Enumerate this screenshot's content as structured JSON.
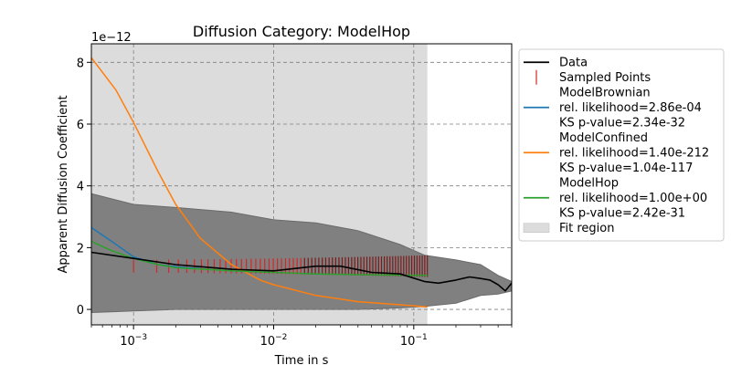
{
  "chart_data": {
    "type": "line",
    "title": "Diffusion Category: ModelHop",
    "xlabel": "Time in s",
    "ylabel": "Apparent Diffusion Coefficient",
    "xscale": "log",
    "xlim": [
      0.0005,
      0.5
    ],
    "ylim": [
      -5e-13,
      8.6e-12
    ],
    "y_offset_text": "1e−12",
    "grid": true,
    "legend_position": "right",
    "x_ticks": [
      {
        "value": 0.001,
        "base": "10",
        "exp": "−3"
      },
      {
        "value": 0.01,
        "base": "10",
        "exp": "−2"
      },
      {
        "value": 0.1,
        "base": "10",
        "exp": "−1"
      }
    ],
    "y_ticks": [
      {
        "value": 0,
        "label": "0"
      },
      {
        "value": 2e-12,
        "label": "2"
      },
      {
        "value": 4e-12,
        "label": "4"
      },
      {
        "value": 6e-12,
        "label": "6"
      },
      {
        "value": 8e-12,
        "label": "8"
      }
    ],
    "fit_region": {
      "x": [
        0.0005,
        0.125
      ],
      "label": "Fit region",
      "color": "#dcdcdc"
    },
    "uncertainty_band": {
      "color": "#808080",
      "x": [
        0.0005,
        0.001,
        0.002,
        0.005,
        0.01,
        0.02,
        0.04,
        0.08,
        0.12,
        0.2,
        0.3,
        0.4,
        0.5
      ],
      "upper": [
        3.75e-12,
        3.4e-12,
        3.3e-12,
        3.15e-12,
        2.9e-12,
        2.8e-12,
        2.55e-12,
        2.1e-12,
        1.75e-12,
        1.6e-12,
        1.45e-12,
        1.1e-12,
        9e-13
      ],
      "lower": [
        -1e-13,
        -5e-14,
        0.0,
        0.0,
        0.0,
        0.0,
        0.0,
        5e-14,
        1e-13,
        2e-13,
        4.5e-13,
        5e-13,
        6e-13
      ]
    },
    "series": [
      {
        "name": "Data",
        "color": "#000000",
        "x": [
          0.0005,
          0.001,
          0.002,
          0.005,
          0.01,
          0.02,
          0.03,
          0.05,
          0.08,
          0.12,
          0.15,
          0.2,
          0.25,
          0.3,
          0.35,
          0.4,
          0.45,
          0.5
        ],
        "y": [
          1.85e-12,
          1.65e-12,
          1.45e-12,
          1.3e-12,
          1.25e-12,
          1.4e-12,
          1.4e-12,
          1.2e-12,
          1.15e-12,
          9e-13,
          8.5e-13,
          9.5e-13,
          1.05e-12,
          1e-12,
          9.5e-13,
          8e-13,
          6e-13,
          8.5e-13
        ]
      },
      {
        "name": "ModelBrownian",
        "color": "#1f77b4",
        "legend_lines": [
          "ModelBrownian",
          "rel. likelihood=2.86e-04",
          "KS p-value=2.34e-32"
        ],
        "x": [
          0.0005,
          0.0007,
          0.001,
          0.0015,
          0.002,
          0.003
        ],
        "y": [
          2.65e-12,
          2.2e-12,
          1.7e-12,
          1.45e-12,
          1.38e-12,
          1.32e-12
        ]
      },
      {
        "name": "ModelConfined",
        "color": "#ff7f0e",
        "legend_lines": [
          "ModelConfined",
          "rel. likelihood=1.40e-212",
          "KS p-value=1.04e-117"
        ],
        "x": [
          0.0005,
          0.00075,
          0.001,
          0.0015,
          0.002,
          0.003,
          0.005,
          0.008,
          0.01,
          0.02,
          0.04,
          0.08,
          0.125
        ],
        "y": [
          8.15e-12,
          7.1e-12,
          6.05e-12,
          4.45e-12,
          3.4e-12,
          2.3e-12,
          1.45e-12,
          9.5e-13,
          8e-13,
          4.5e-13,
          2.5e-13,
          1.5e-13,
          8e-14
        ]
      },
      {
        "name": "ModelHop",
        "color": "#2ca02c",
        "legend_lines": [
          "ModelHop",
          "rel. likelihood=1.00e+00",
          "KS p-value=2.42e-31"
        ],
        "x": [
          0.0005,
          0.0007,
          0.001,
          0.0015,
          0.002,
          0.005,
          0.01,
          0.02,
          0.05,
          0.125
        ],
        "y": [
          2.2e-12,
          1.9e-12,
          1.65e-12,
          1.45e-12,
          1.35e-12,
          1.25e-12,
          1.2e-12,
          1.15e-12,
          1.12e-12,
          1.1e-12
        ]
      }
    ],
    "sampled_points": {
      "name": "Sampled Points",
      "tick_color": "#d62728",
      "fill_color": "#7b1a1a",
      "x_range": [
        0.001,
        0.125
      ],
      "center": 1.4e-12,
      "half_height": 3.5e-13,
      "count": 70
    },
    "legend": [
      {
        "kind": "line",
        "label_lines": [
          "Data"
        ],
        "color": "#000000"
      },
      {
        "kind": "vtick",
        "label_lines": [
          "Sampled Points"
        ],
        "color": "#d62728"
      },
      {
        "kind": "line",
        "label_lines": [
          "ModelBrownian",
          "rel. likelihood=2.86e-04",
          "KS p-value=2.34e-32"
        ],
        "color": "#1f77b4"
      },
      {
        "kind": "line",
        "label_lines": [
          "ModelConfined",
          "rel. likelihood=1.40e-212",
          "KS p-value=1.04e-117"
        ],
        "color": "#ff7f0e"
      },
      {
        "kind": "line",
        "label_lines": [
          "ModelHop",
          "rel. likelihood=1.00e+00",
          "KS p-value=2.42e-31"
        ],
        "color": "#2ca02c"
      },
      {
        "kind": "patch",
        "label_lines": [
          "Fit region"
        ],
        "color": "#dcdcdc"
      }
    ]
  }
}
